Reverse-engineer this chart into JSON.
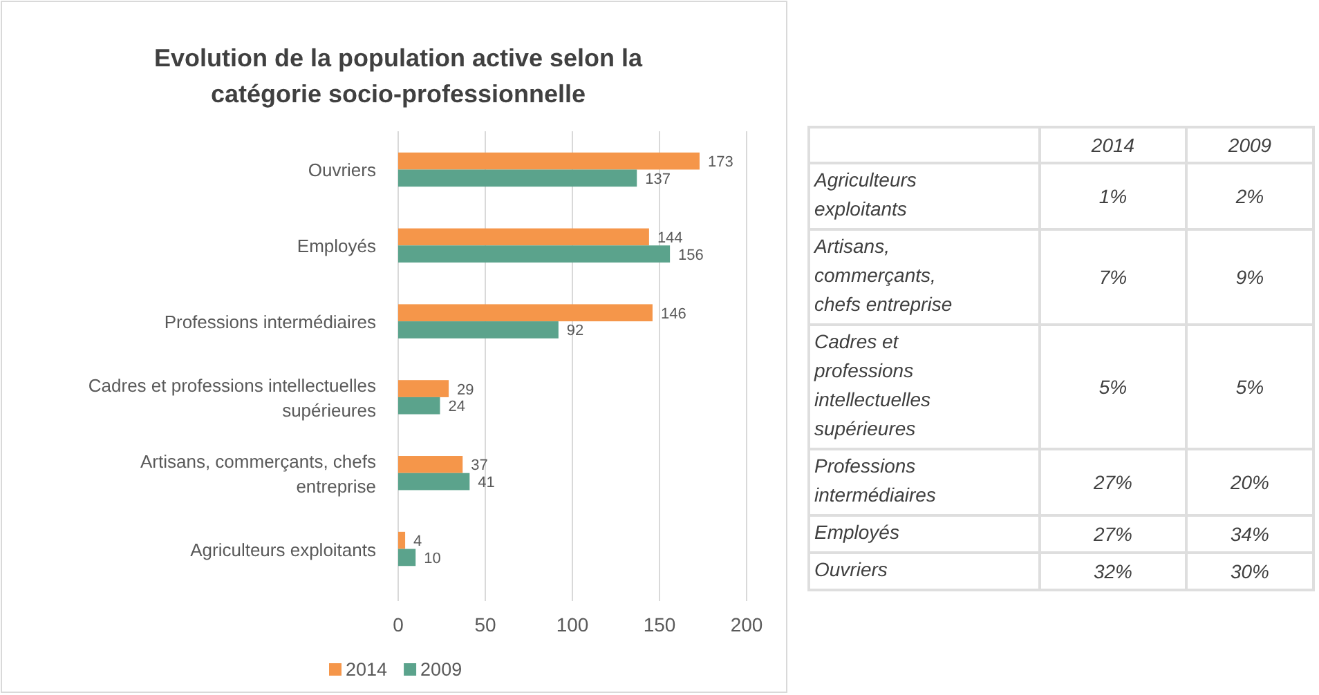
{
  "chart_data": [
    {
      "type": "bar",
      "orientation": "horizontal",
      "title": "Evolution de la population active selon la catégorie socio-professionnelle",
      "categories": [
        "Ouvriers",
        "Employés",
        "Professions intermédiaires",
        "Cadres et professions intellectuelles supérieures",
        "Artisans, commerçants, chefs entreprise",
        "Agriculteurs exploitants"
      ],
      "series": [
        {
          "name": "2014",
          "color": "#f5964a",
          "values": [
            173,
            144,
            146,
            29,
            37,
            4
          ]
        },
        {
          "name": "2009",
          "color": "#5ba38c",
          "values": [
            137,
            156,
            92,
            24,
            41,
            10
          ]
        }
      ],
      "xlim": [
        0,
        200
      ],
      "xticks": [
        0,
        50,
        100,
        150,
        200
      ],
      "grid": "x",
      "legend": "bottom",
      "data_labels": true
    },
    {
      "type": "heatmap",
      "categories": [
        "2014",
        "2009"
      ],
      "y_categories": [
        "Agriculteurs exploitants",
        "Artisans, commerçants, chefs entreprise",
        "Cadres et professions intellectuelles supérieures",
        "Professions intermédiaires",
        "Employés",
        "Ouvriers"
      ],
      "cells": [
        [
          1,
          2
        ],
        [
          7,
          9
        ],
        [
          5,
          5
        ],
        [
          27,
          20
        ],
        [
          27,
          34
        ],
        [
          32,
          30
        ]
      ],
      "cell_labels": [
        [
          "1%",
          "2%"
        ],
        [
          "7%",
          "9%"
        ],
        [
          "5%",
          "5%"
        ],
        [
          "27%",
          "20%"
        ],
        [
          "27%",
          "34%"
        ],
        [
          "32%",
          "30%"
        ]
      ]
    }
  ]
}
